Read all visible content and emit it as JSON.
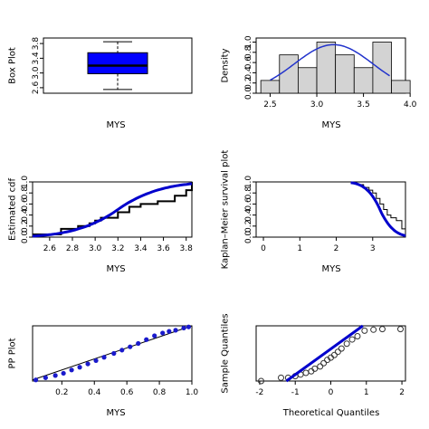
{
  "chart_data": [
    {
      "id": "box",
      "type": "box",
      "xlabel": "MYS",
      "ylabel": "Box Plot",
      "ylim": [
        2.45,
        3.95
      ],
      "yticks": [
        "2.6",
        "3.0",
        "3.4",
        "3.8"
      ],
      "stats": {
        "min": 2.55,
        "q1": 2.98,
        "median": 3.2,
        "q3": 3.55,
        "max": 3.85
      },
      "fill": "#0000ff"
    },
    {
      "id": "hist",
      "type": "bar",
      "xlabel": "MYS",
      "ylabel": "Density",
      "xlim": [
        2.35,
        3.95
      ],
      "ylim": [
        0,
        1.08
      ],
      "xticks": [
        "2.5",
        "3.0",
        "3.5",
        "4.0"
      ],
      "yticks": [
        "0.0",
        "0.2",
        "0.4",
        "0.6",
        "0.8",
        "1.0"
      ],
      "bins": [
        {
          "from": 2.4,
          "to": 2.6,
          "density": 0.25
        },
        {
          "from": 2.6,
          "to": 2.8,
          "density": 0.75
        },
        {
          "from": 2.8,
          "to": 3.0,
          "density": 0.5
        },
        {
          "from": 3.0,
          "to": 3.2,
          "density": 1.0
        },
        {
          "from": 3.2,
          "to": 3.4,
          "density": 0.75
        },
        {
          "from": 3.4,
          "to": 3.6,
          "density": 0.5
        },
        {
          "from": 3.6,
          "to": 3.8,
          "density": 1.0
        },
        {
          "from": 3.8,
          "to": 4.0,
          "density": 0.25
        }
      ],
      "density_curve": {
        "mean": 3.18,
        "sd": 0.42,
        "from": 2.5,
        "to": 3.78
      },
      "curve_color": "#2233cc"
    },
    {
      "id": "cdf",
      "type": "line",
      "xlabel": "MYS",
      "ylabel": "Estimated cdf",
      "xlim": [
        2.45,
        3.85
      ],
      "ylim": [
        0,
        1.0
      ],
      "xticks": [
        "2.6",
        "2.8",
        "3.0",
        "3.2",
        "3.4",
        "3.6",
        "3.8"
      ],
      "yticks": [
        "0.0",
        "0.2",
        "0.4",
        "0.6",
        "0.8",
        "1.0"
      ],
      "empirical_steps": [
        [
          2.45,
          0.05
        ],
        [
          2.7,
          0.15
        ],
        [
          2.85,
          0.2
        ],
        [
          2.95,
          0.25
        ],
        [
          3.0,
          0.3
        ],
        [
          3.05,
          0.35
        ],
        [
          3.2,
          0.45
        ],
        [
          3.3,
          0.55
        ],
        [
          3.4,
          0.6
        ],
        [
          3.55,
          0.65
        ],
        [
          3.7,
          0.75
        ],
        [
          3.8,
          0.85
        ],
        [
          3.85,
          1.0
        ]
      ],
      "fitted": {
        "mean": 3.2,
        "sd": 0.38
      },
      "fit_color": "#0000cc"
    },
    {
      "id": "km",
      "type": "line",
      "xlabel": "MYS",
      "ylabel": "Kaplan–Meier survival plot",
      "xlim": [
        -0.2,
        3.9
      ],
      "ylim": [
        0,
        1.0
      ],
      "xticks": [
        "0",
        "1",
        "2",
        "3"
      ],
      "yticks": [
        "0.0",
        "0.2",
        "0.4",
        "0.6",
        "0.8",
        "1.0"
      ],
      "steps": [
        [
          -0.05,
          1.0
        ],
        [
          2.55,
          0.95
        ],
        [
          2.75,
          0.9
        ],
        [
          2.9,
          0.85
        ],
        [
          3.0,
          0.8
        ],
        [
          3.1,
          0.7
        ],
        [
          3.2,
          0.6
        ],
        [
          3.3,
          0.5
        ],
        [
          3.4,
          0.4
        ],
        [
          3.5,
          0.35
        ],
        [
          3.65,
          0.3
        ],
        [
          3.8,
          0.15
        ],
        [
          3.9,
          0.0
        ]
      ],
      "fitted": {
        "mean": 3.2,
        "sd": 0.38
      },
      "fit_color": "#0000cc"
    },
    {
      "id": "pp",
      "type": "scatter",
      "xlabel": "MYS",
      "ylabel": "PP Plot",
      "xlim": [
        0.02,
        1.0
      ],
      "ylim": [
        0,
        1.0
      ],
      "xticks": [
        "0.2",
        "0.4",
        "0.6",
        "0.8",
        "1.0"
      ],
      "points": [
        [
          0.04,
          0.02
        ],
        [
          0.1,
          0.06
        ],
        [
          0.16,
          0.1
        ],
        [
          0.21,
          0.14
        ],
        [
          0.26,
          0.2
        ],
        [
          0.31,
          0.25
        ],
        [
          0.36,
          0.31
        ],
        [
          0.41,
          0.37
        ],
        [
          0.46,
          0.43
        ],
        [
          0.52,
          0.5
        ],
        [
          0.57,
          0.56
        ],
        [
          0.62,
          0.62
        ],
        [
          0.67,
          0.68
        ],
        [
          0.72,
          0.75
        ],
        [
          0.77,
          0.82
        ],
        [
          0.82,
          0.87
        ],
        [
          0.86,
          0.9
        ],
        [
          0.9,
          0.92
        ],
        [
          0.95,
          0.96
        ],
        [
          0.98,
          0.98
        ]
      ],
      "point_color": "#1a1acc",
      "reference_line": [
        [
          0.02,
          0.02
        ],
        [
          1.0,
          1.0
        ]
      ]
    },
    {
      "id": "qq",
      "type": "scatter",
      "xlabel": "Theoretical Quantiles",
      "ylabel": "Sample Quantiles",
      "xlim": [
        -2.1,
        2.1
      ],
      "ylim": [
        -1.7,
        0.0
      ],
      "xticks": [
        "-2",
        "-1",
        "0",
        "1",
        "2"
      ],
      "points": [
        [
          -1.96,
          -1.7
        ],
        [
          -1.4,
          -1.6
        ],
        [
          -1.2,
          -1.6
        ],
        [
          -1.0,
          -1.55
        ],
        [
          -0.85,
          -1.5
        ],
        [
          -0.7,
          -1.45
        ],
        [
          -0.55,
          -1.4
        ],
        [
          -0.45,
          -1.32
        ],
        [
          -0.3,
          -1.25
        ],
        [
          -0.2,
          -1.15
        ],
        [
          -0.1,
          -1.05
        ],
        [
          0.0,
          -0.98
        ],
        [
          0.1,
          -0.9
        ],
        [
          0.2,
          -0.8
        ],
        [
          0.3,
          -0.7
        ],
        [
          0.45,
          -0.55
        ],
        [
          0.6,
          -0.42
        ],
        [
          0.75,
          -0.32
        ],
        [
          0.95,
          -0.15
        ],
        [
          1.2,
          -0.12
        ],
        [
          1.45,
          -0.1
        ],
        [
          1.96,
          -0.1
        ]
      ],
      "reference_line": [
        [
          -1.25,
          -1.7
        ],
        [
          0.9,
          0.0
        ]
      ],
      "line_color": "#0000cc"
    }
  ]
}
